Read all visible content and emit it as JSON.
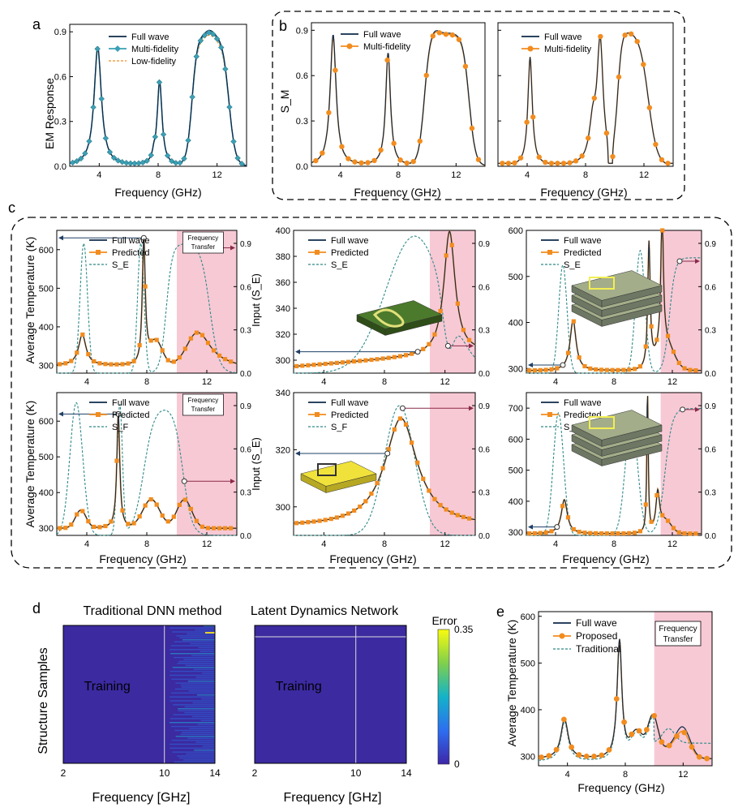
{
  "panels": {
    "a": {
      "letter": "a",
      "ylabel": "EM Response",
      "xlabel": "Frequency (GHz)",
      "xlim": [
        2,
        14
      ],
      "ylim": [
        0,
        0.95
      ],
      "xticks": [
        4,
        8,
        12
      ],
      "yticks": [
        0.0,
        0.3,
        0.6,
        0.9
      ],
      "legend": [
        "Full wave",
        "Multi-fidelity",
        "Low-fidelity"
      ]
    },
    "b": {
      "letter": "b",
      "ylabel": "S_M",
      "xlabel": "Frequency (GHz)",
      "xlim": [
        2,
        14
      ],
      "ylim": [
        0,
        0.95
      ],
      "xticks": [
        4,
        8,
        12
      ],
      "yticks": [
        0.0,
        0.3,
        0.6,
        0.9
      ],
      "legend": [
        "Full wave",
        "Multi-fidelity"
      ]
    },
    "c": {
      "letter": "c",
      "ylabel": "Average Temperature (K)",
      "ylabel_right": "Input (S_E)",
      "xlabel": "Frequency (GHz)",
      "legend_top": [
        "Full wave",
        "Predicted",
        "S_E"
      ],
      "legend_bottom": [
        "Full wave",
        "Predicted",
        "S_F"
      ],
      "transfer_label_1": "Frequency",
      "transfer_label_2": "Transfer",
      "right_ticks": [
        "0.0",
        "0.3",
        "0.6",
        "0.9"
      ],
      "subplots": [
        {
          "yticks": [
            300,
            400,
            500,
            600
          ],
          "ylim": [
            280,
            650
          ],
          "xticks": [
            4,
            8,
            12
          ]
        },
        {
          "yticks": [
            300,
            320,
            340,
            360,
            380,
            400
          ],
          "ylim": [
            290,
            400
          ],
          "xticks": [
            4,
            8,
            12
          ]
        },
        {
          "yticks": [
            300,
            400,
            500,
            600
          ],
          "ylim": [
            290,
            600
          ],
          "xticks": [
            4,
            8,
            12
          ]
        },
        {
          "yticks": [
            300,
            400,
            500,
            600
          ],
          "ylim": [
            280,
            680
          ],
          "xticks": [
            4,
            8,
            12
          ]
        },
        {
          "yticks": [
            300,
            320,
            340
          ],
          "ylim": [
            290,
            340
          ],
          "xticks": [
            4,
            8,
            12
          ]
        },
        {
          "yticks": [
            300,
            400,
            500,
            600,
            700
          ],
          "ylim": [
            290,
            750
          ],
          "xticks": [
            4,
            8,
            12
          ]
        }
      ]
    },
    "d": {
      "letter": "d",
      "title_left": "Traditional DNN method",
      "title_right": "Latent Dynamics Network",
      "ylabel": "Structure Samples",
      "xlabel": "Frequency [GHz]",
      "xticks": [
        "2",
        "10",
        "14"
      ],
      "training": "Training",
      "colorbar_title": "Error",
      "colorbar_max": "0.35",
      "colorbar_min": "0"
    },
    "e": {
      "letter": "e",
      "ylabel": "Average Temperature (K)",
      "xlabel": "Frequency (GHz)",
      "legend": [
        "Full wave",
        "Proposed",
        "Traditional"
      ],
      "transfer_label_1": "Frequency",
      "transfer_label_2": "Transfer",
      "xticks": [
        4,
        8,
        12
      ],
      "yticks": [
        300,
        400,
        500,
        600
      ],
      "ylim": [
        280,
        610
      ],
      "xlim": [
        2,
        14
      ]
    }
  },
  "chart_data": [
    {
      "type": "line",
      "panel": "a",
      "series": [
        {
          "name": "Full wave",
          "peaks": [
            [
              3.9,
              0.82
            ],
            [
              8.1,
              0.6
            ],
            [
              11.5,
              0.91
            ]
          ]
        },
        {
          "name": "Multi-fidelity",
          "peaks": [
            [
              3.9,
              0.8
            ],
            [
              8.1,
              0.57
            ],
            [
              11.5,
              0.9
            ]
          ]
        },
        {
          "name": "Low-fidelity",
          "peaks": [
            [
              3.9,
              0.79
            ],
            [
              8.1,
              0.55
            ],
            [
              11.5,
              0.88
            ]
          ]
        }
      ]
    },
    {
      "type": "line",
      "panel": "b",
      "series": [
        {
          "name": "Full wave",
          "peaks": [
            [
              3.5,
              0.88
            ],
            [
              7.3,
              0.76
            ],
            [
              11.2,
              0.9
            ]
          ]
        },
        {
          "name": "Multi-fidelity",
          "peaks": [
            [
              3.5,
              0.87
            ],
            [
              7.3,
              0.74
            ],
            [
              11.2,
              0.9
            ]
          ]
        }
      ]
    },
    {
      "type": "line",
      "panel": "b2",
      "series": [
        {
          "name": "Full wave",
          "peaks": [
            [
              4.2,
              0.72
            ],
            [
              9.0,
              0.82
            ],
            [
              11.0,
              0.9
            ]
          ]
        },
        {
          "name": "Multi-fidelity",
          "peaks": [
            [
              4.2,
              0.72
            ],
            [
              9.0,
              0.82
            ],
            [
              11.0,
              0.9
            ]
          ]
        }
      ]
    },
    {
      "type": "line",
      "panel": "e",
      "series": [
        {
          "name": "Full wave",
          "peaks": [
            [
              3.8,
              380
            ],
            [
              7.6,
              560
            ],
            [
              9.8,
              392
            ],
            [
              12.0,
              385
            ]
          ]
        },
        {
          "name": "Proposed",
          "peaks": [
            [
              3.8,
              378
            ],
            [
              7.6,
              550
            ],
            [
              9.8,
              392
            ],
            [
              12.0,
              375
            ]
          ]
        },
        {
          "name": "Traditional",
          "peaks": [
            [
              3.8,
              375
            ],
            [
              7.6,
              530
            ],
            [
              9.8,
              390
            ]
          ]
        }
      ]
    }
  ],
  "colors": {
    "fullwave": "#0d2a4a",
    "orange": "#f28c1e",
    "teal": "#2e8a88",
    "pink": "#f7c9d5",
    "blue_fill": "#4a95b8"
  }
}
